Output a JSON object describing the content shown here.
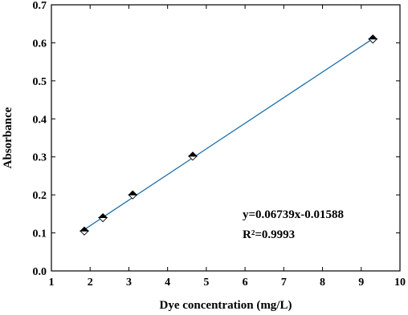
{
  "chart_data": {
    "type": "scatter",
    "x_label": "Dye concentration (mg/L)",
    "y_label": "Absorbance",
    "series": [
      {
        "color": "#000000",
        "x": [
          1.85,
          2.33,
          3.1,
          4.65,
          9.3
        ],
        "values": [
          0.105,
          0.14,
          0.2,
          0.302,
          0.61
        ]
      }
    ],
    "fit_line": {
      "color": "#1f6fa8",
      "x": [
        1.85,
        9.3
      ],
      "values": [
        0.1088,
        0.6108
      ]
    },
    "annotations": [
      "y=0.06739x-0.01588",
      "R²=0.9993"
    ],
    "xlim": [
      1,
      10
    ],
    "xticks": [
      1,
      2,
      3,
      4,
      5,
      6,
      7,
      8,
      9,
      10
    ],
    "ylim": [
      0,
      0.7
    ],
    "yticks": [
      {
        "value": 0,
        "label": "0.0"
      },
      0.1,
      0.2,
      0.3,
      0.4,
      0.5,
      0.6,
      0.7
    ]
  }
}
